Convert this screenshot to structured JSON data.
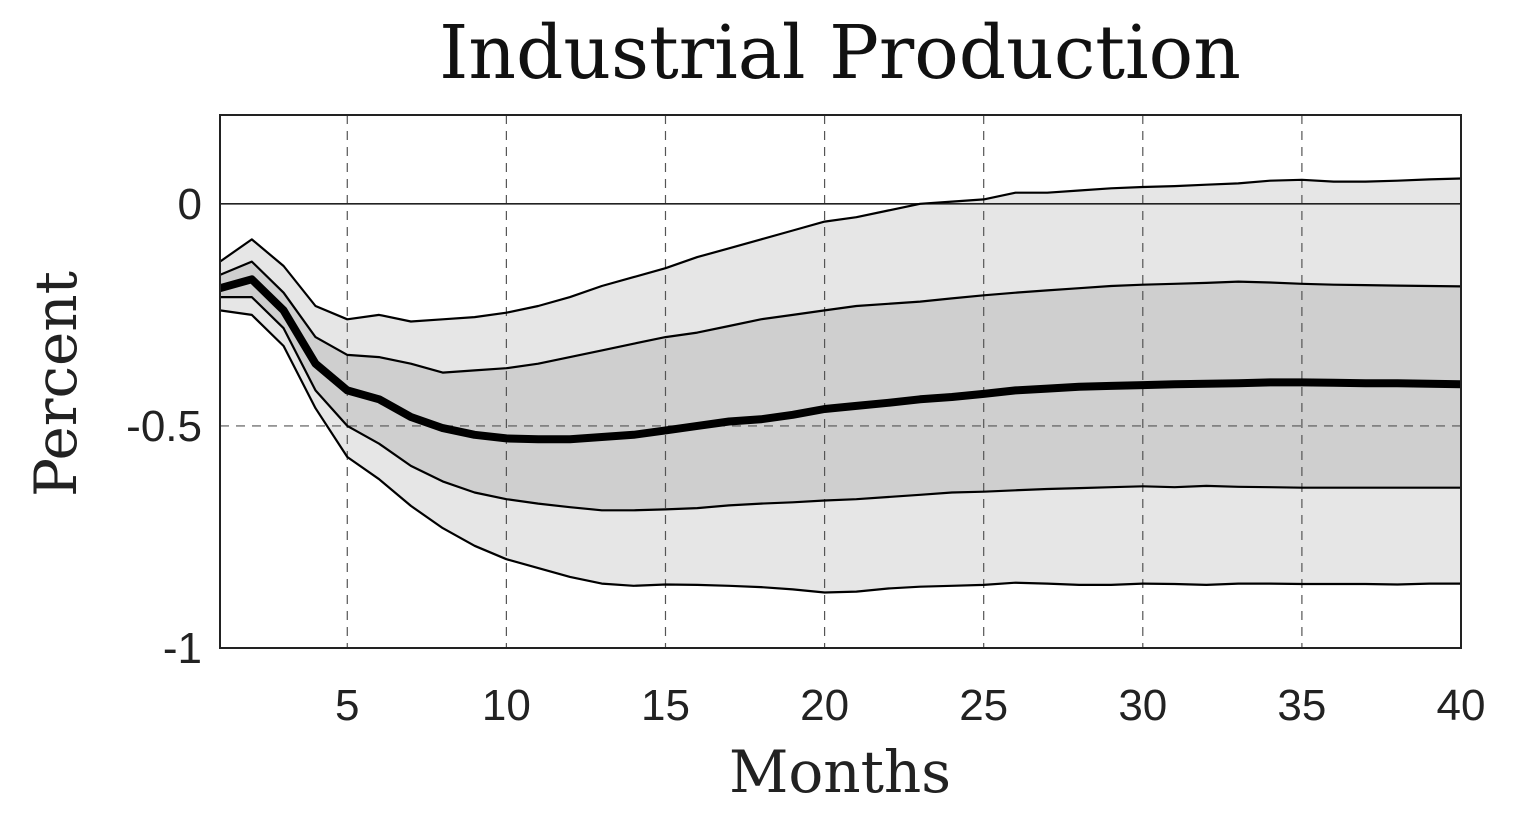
{
  "chart_data": {
    "type": "area",
    "title": "Industrial Production",
    "xlabel": "Months",
    "ylabel": "Percent",
    "xlim": [
      1,
      40
    ],
    "ylim": [
      -1,
      0.2
    ],
    "xticks": [
      5,
      10,
      15,
      20,
      25,
      30,
      35,
      40
    ],
    "yticks": [
      0,
      -0.5,
      -1
    ],
    "ytick_labels": [
      "0",
      "-0.5",
      "-1"
    ],
    "grid": true,
    "colors": {
      "outer_band": "#e6e6e6",
      "inner_band": "#cfcfcf",
      "line": "#000000"
    },
    "x": [
      1,
      2,
      3,
      4,
      5,
      6,
      7,
      8,
      9,
      10,
      11,
      12,
      13,
      14,
      15,
      16,
      17,
      18,
      19,
      20,
      21,
      22,
      23,
      24,
      25,
      26,
      27,
      28,
      29,
      30,
      31,
      32,
      33,
      34,
      35,
      36,
      37,
      38,
      39,
      40
    ],
    "series": [
      {
        "role": "upper_outer",
        "values": [
          -0.13,
          -0.08,
          -0.14,
          -0.23,
          -0.26,
          -0.25,
          -0.265,
          -0.26,
          -0.255,
          -0.245,
          -0.23,
          -0.21,
          -0.185,
          -0.165,
          -0.145,
          -0.12,
          -0.1,
          -0.08,
          -0.06,
          -0.04,
          -0.03,
          -0.015,
          0.0,
          0.005,
          0.01,
          0.025,
          0.025,
          0.03,
          0.035,
          0.038,
          0.04,
          0.043,
          0.046,
          0.052,
          0.054,
          0.05,
          0.05,
          0.052,
          0.055,
          0.057
        ]
      },
      {
        "role": "upper_inner",
        "values": [
          -0.16,
          -0.13,
          -0.2,
          -0.3,
          -0.34,
          -0.345,
          -0.36,
          -0.38,
          -0.375,
          -0.37,
          -0.36,
          -0.345,
          -0.33,
          -0.315,
          -0.3,
          -0.29,
          -0.275,
          -0.26,
          -0.25,
          -0.24,
          -0.23,
          -0.225,
          -0.22,
          -0.213,
          -0.206,
          -0.2,
          -0.195,
          -0.19,
          -0.185,
          -0.182,
          -0.18,
          -0.178,
          -0.175,
          -0.177,
          -0.18,
          -0.182,
          -0.183,
          -0.184,
          -0.185,
          -0.186
        ]
      },
      {
        "role": "median",
        "values": [
          -0.19,
          -0.17,
          -0.24,
          -0.36,
          -0.42,
          -0.44,
          -0.48,
          -0.505,
          -0.52,
          -0.528,
          -0.53,
          -0.53,
          -0.525,
          -0.52,
          -0.51,
          -0.5,
          -0.49,
          -0.485,
          -0.475,
          -0.462,
          -0.455,
          -0.448,
          -0.44,
          -0.435,
          -0.428,
          -0.42,
          -0.416,
          -0.412,
          -0.41,
          -0.408,
          -0.406,
          -0.405,
          -0.404,
          -0.402,
          -0.402,
          -0.403,
          -0.404,
          -0.404,
          -0.405,
          -0.406
        ]
      },
      {
        "role": "lower_inner",
        "values": [
          -0.21,
          -0.21,
          -0.28,
          -0.42,
          -0.5,
          -0.54,
          -0.59,
          -0.625,
          -0.65,
          -0.665,
          -0.675,
          -0.683,
          -0.69,
          -0.69,
          -0.688,
          -0.685,
          -0.679,
          -0.675,
          -0.672,
          -0.668,
          -0.665,
          -0.66,
          -0.655,
          -0.65,
          -0.648,
          -0.645,
          -0.642,
          -0.64,
          -0.638,
          -0.636,
          -0.638,
          -0.635,
          -0.637,
          -0.638,
          -0.639,
          -0.639,
          -0.639,
          -0.639,
          -0.639,
          -0.639
        ]
      },
      {
        "role": "lower_outer",
        "values": [
          -0.24,
          -0.25,
          -0.32,
          -0.46,
          -0.57,
          -0.62,
          -0.68,
          -0.73,
          -0.77,
          -0.8,
          -0.82,
          -0.84,
          -0.855,
          -0.86,
          -0.857,
          -0.858,
          -0.86,
          -0.863,
          -0.868,
          -0.875,
          -0.873,
          -0.866,
          -0.862,
          -0.86,
          -0.858,
          -0.853,
          -0.855,
          -0.858,
          -0.858,
          -0.855,
          -0.856,
          -0.858,
          -0.855,
          -0.855,
          -0.856,
          -0.856,
          -0.856,
          -0.857,
          -0.855,
          -0.855
        ]
      }
    ]
  }
}
